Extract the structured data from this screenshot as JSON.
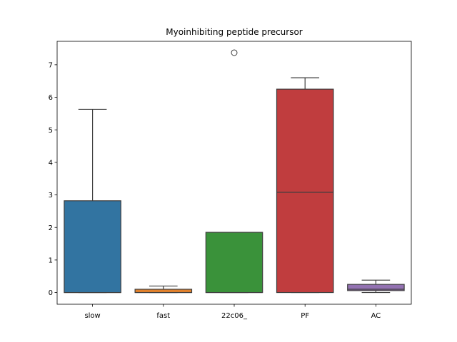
{
  "chart_data": {
    "type": "box",
    "title": "Myoinhibiting peptide precursor",
    "xlabel": "",
    "ylabel": "",
    "ylim": [
      -0.36,
      7.72
    ],
    "yticks": [
      0,
      1,
      2,
      3,
      4,
      5,
      6,
      7
    ],
    "grid": false,
    "legend": "none",
    "categories": [
      "slow",
      "fast",
      "22c06_",
      "PF",
      "AC"
    ],
    "boxes": [
      {
        "category": "slow",
        "whisker_low": 0.0,
        "q1": 0.0,
        "median": 0.0,
        "q3": 2.82,
        "whisker_high": 5.63,
        "outliers": [],
        "color": "#3274a1"
      },
      {
        "category": "fast",
        "whisker_low": 0.0,
        "q1": 0.0,
        "median": 0.0,
        "q3": 0.1,
        "whisker_high": 0.2,
        "outliers": [],
        "color": "#e1812c"
      },
      {
        "category": "22c06_",
        "whisker_low": 0.0,
        "q1": 0.0,
        "median": 0.0,
        "q3": 1.85,
        "whisker_high": 1.85,
        "outliers": [
          7.37
        ],
        "color": "#3a923a"
      },
      {
        "category": "PF",
        "whisker_low": 0.0,
        "q1": 0.0,
        "median": 3.08,
        "q3": 6.25,
        "whisker_high": 6.6,
        "outliers": [],
        "color": "#c03d3e"
      },
      {
        "category": "AC",
        "whisker_low": 0.0,
        "q1": 0.06,
        "median": 0.1,
        "q3": 0.25,
        "whisker_high": 0.38,
        "outliers": [],
        "color": "#9372b2"
      }
    ]
  }
}
